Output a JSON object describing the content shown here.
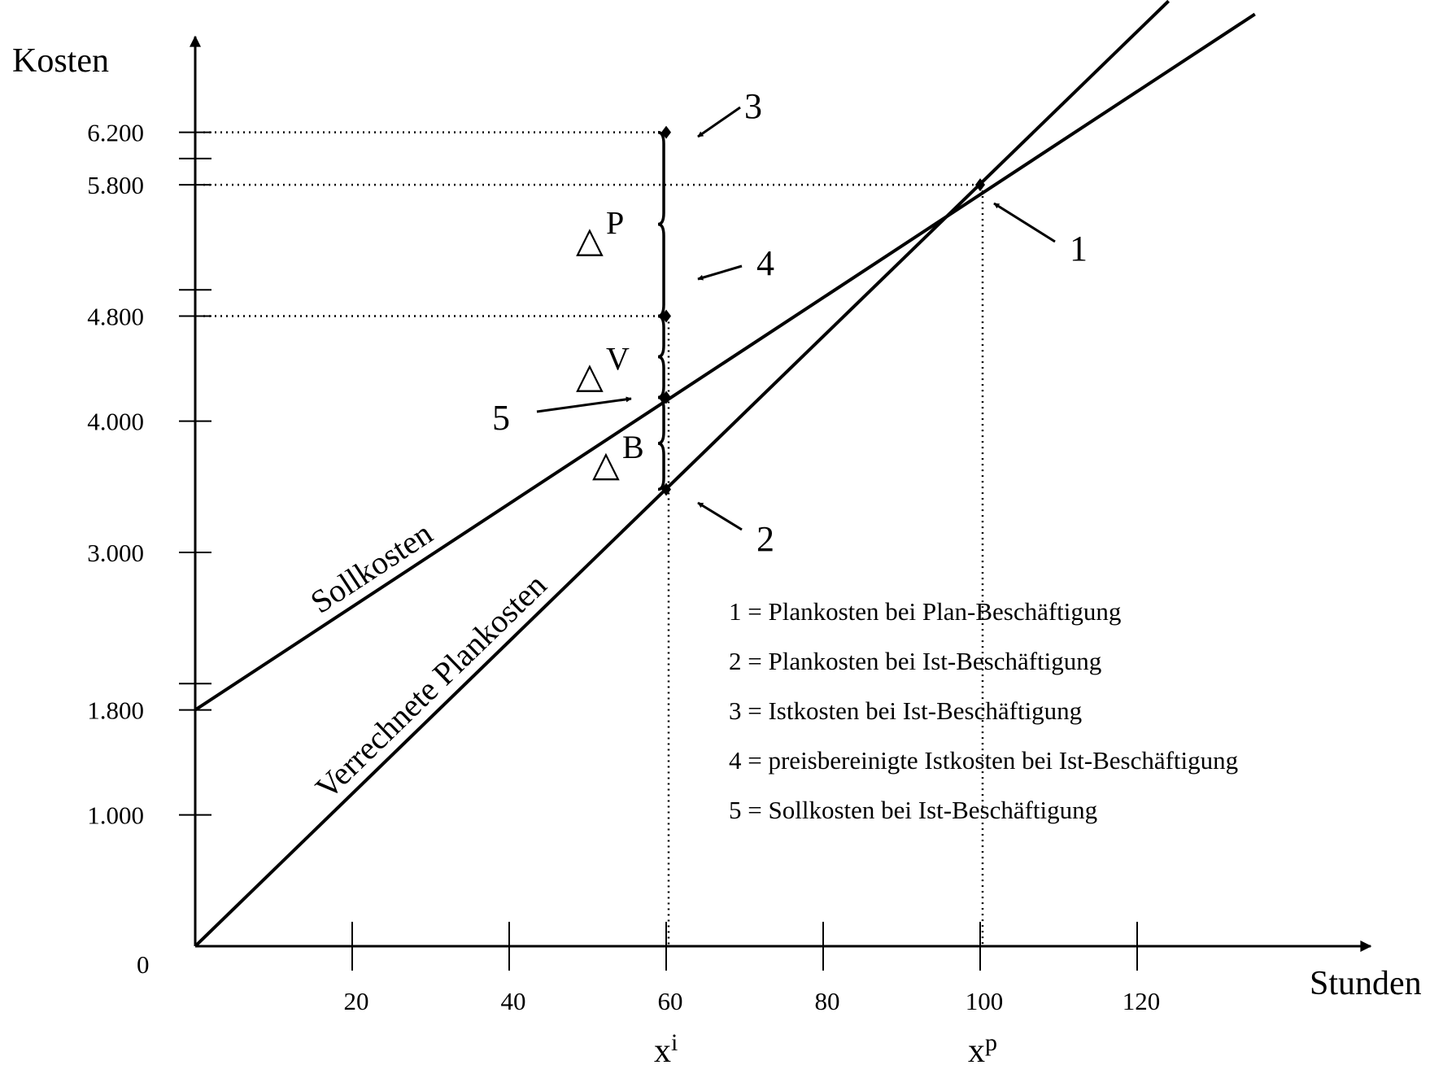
{
  "chart_data": {
    "type": "line",
    "xlabel": "Stunden",
    "ylabel": "Kosten",
    "xlim": [
      0,
      150
    ],
    "ylim": [
      0,
      7000
    ],
    "origin_label": "0",
    "x_ticks": [
      {
        "value": 20,
        "label": "20"
      },
      {
        "value": 40,
        "label": "40"
      },
      {
        "value": 60,
        "label": "60"
      },
      {
        "value": 80,
        "label": "80"
      },
      {
        "value": 100,
        "label": "100"
      },
      {
        "value": 120,
        "label": "120"
      }
    ],
    "y_ticks": [
      {
        "value": 1000,
        "label": "1.000"
      },
      {
        "value": 1800,
        "label": "1.800"
      },
      {
        "value": 3000,
        "label": "3.000"
      },
      {
        "value": 4000,
        "label": "4.000"
      },
      {
        "value": 4800,
        "label": "4.800"
      },
      {
        "value": 5800,
        "label": "5.800"
      },
      {
        "value": 6200,
        "label": "6.200"
      }
    ],
    "y_extra_ticks": [
      2000,
      5000,
      6000
    ],
    "series": [
      {
        "name": "Sollkosten",
        "x": [
          0,
          135
        ],
        "y": [
          1800,
          7100
        ]
      },
      {
        "name": "Verrechnete Plankosten",
        "x": [
          0,
          124
        ],
        "y": [
          0,
          7200
        ]
      }
    ],
    "points": [
      {
        "label": "1",
        "x": 100,
        "y": 5800
      },
      {
        "label": "2",
        "x": 60,
        "y": 3480
      },
      {
        "label": "3",
        "x": 60,
        "y": 6200
      },
      {
        "label": "4",
        "x": 60,
        "y": 4800
      },
      {
        "label": "5",
        "x": 60,
        "y": 4180
      }
    ],
    "x_markers": [
      {
        "x": 60,
        "base": "x",
        "sup": "i"
      },
      {
        "x": 100,
        "base": "x",
        "sup": "p"
      }
    ],
    "deltas": [
      {
        "symbol": "△",
        "sub": "P",
        "from": 4800,
        "to": 6200
      },
      {
        "symbol": "△",
        "sub": "V",
        "from": 4180,
        "to": 4800
      },
      {
        "symbol": "△",
        "sub": "B",
        "from": 3480,
        "to": 4180
      }
    ],
    "legend": [
      "1 = Plankosten bei Plan-Beschäftigung",
      "2 = Plankosten bei Ist-Beschäftigung",
      "3 = Istkosten bei Ist-Beschäftigung",
      "4 = preisbereinigte Istkosten bei Ist-Beschäftigung",
      "5 = Sollkosten bei Ist-Beschäftigung"
    ]
  }
}
